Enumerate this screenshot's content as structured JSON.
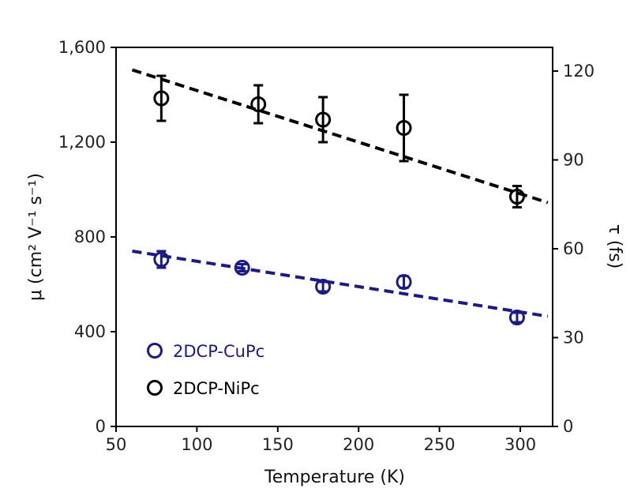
{
  "chart_data": {
    "type": "scatter",
    "title": "",
    "xlabel": "Temperature (K)",
    "ylabel_left": "μ (cm² V⁻¹ s⁻¹)",
    "ylabel_right": "τ (fs)",
    "xlim": [
      50,
      320
    ],
    "ylim_left": [
      0,
      1600
    ],
    "ylim_right": [
      0,
      128
    ],
    "x_ticks": [
      50,
      100,
      150,
      200,
      250,
      300
    ],
    "x_tick_labels": [
      "50",
      "100",
      "150",
      "200",
      "250",
      "300"
    ],
    "y_left_ticks": [
      0,
      400,
      800,
      1200,
      1600
    ],
    "y_left_tick_labels": [
      "0",
      "400",
      "800",
      "1,200",
      "1,600"
    ],
    "y_right_ticks": [
      0,
      30,
      60,
      90,
      120
    ],
    "y_right_tick_labels": [
      "0",
      "30",
      "60",
      "90",
      "120"
    ],
    "grid": false,
    "legend_position": "bottom-left",
    "series": [
      {
        "name": "2DCP-CuPc",
        "color": "#1a1a8c",
        "marker": "open-circle",
        "points": [
          {
            "x": 78,
            "y": 705,
            "err": 35
          },
          {
            "x": 128,
            "y": 670,
            "err": 15
          },
          {
            "x": 178,
            "y": 590,
            "err": 20
          },
          {
            "x": 228,
            "y": 610,
            "err": 25
          },
          {
            "x": 298,
            "y": 460,
            "err": 20
          }
        ],
        "fit": {
          "x": [
            60,
            317
          ],
          "y": [
            740,
            465
          ]
        }
      },
      {
        "name": "2DCP-NiPc",
        "color": "#000000",
        "marker": "open-circle",
        "points": [
          {
            "x": 78,
            "y": 1385,
            "err": 95
          },
          {
            "x": 138,
            "y": 1360,
            "err": 80
          },
          {
            "x": 178,
            "y": 1295,
            "err": 95
          },
          {
            "x": 228,
            "y": 1260,
            "err": 140
          },
          {
            "x": 298,
            "y": 970,
            "err": 45
          }
        ],
        "fit": {
          "x": [
            60,
            317
          ],
          "y": [
            1505,
            945
          ]
        }
      }
    ]
  }
}
